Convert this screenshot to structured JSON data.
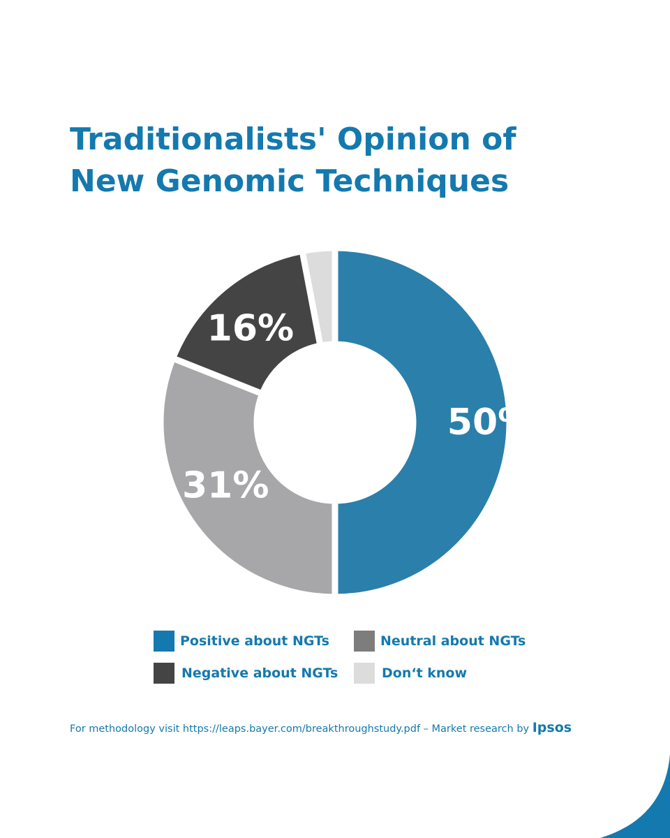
{
  "title": {
    "line1": "Traditionalists' Opinion of",
    "line2": "New Genomic Techniques"
  },
  "colors": {
    "accent": "#1479ae",
    "positive": "#2a7fab",
    "neutral": "#a7a7a9",
    "negative": "#444444",
    "dont_know": "#dcdcdc"
  },
  "chart_data": {
    "type": "pie",
    "title": "Traditionalists' Opinion of New Genomic Techniques",
    "donut": true,
    "slices": [
      {
        "label": "Positive about NGTs",
        "value": 50,
        "display": "50%",
        "color": "#2a7fab"
      },
      {
        "label": "Neutral about NGTs",
        "value": 31,
        "display": "31%",
        "color": "#a7a7a9"
      },
      {
        "label": "Negative about NGTs",
        "value": 16,
        "display": "16%",
        "color": "#444444"
      },
      {
        "label": "Don‘t know",
        "value": 3,
        "display": "",
        "color": "#dcdcdc"
      }
    ],
    "legend_position": "bottom"
  },
  "legend": [
    {
      "label": "Positive about NGTs",
      "color": "#1479ae"
    },
    {
      "label": "Neutral about NGTs",
      "color": "#7d7d7d"
    },
    {
      "label": "Negative about NGTs",
      "color": "#444444"
    },
    {
      "label": "Don‘t know",
      "color": "#dcdcdc"
    }
  ],
  "footer": {
    "text": "For methodology visit https://leaps.bayer.com/breakthroughstudy.pdf – Market research by ",
    "brand": "Ipsos"
  }
}
